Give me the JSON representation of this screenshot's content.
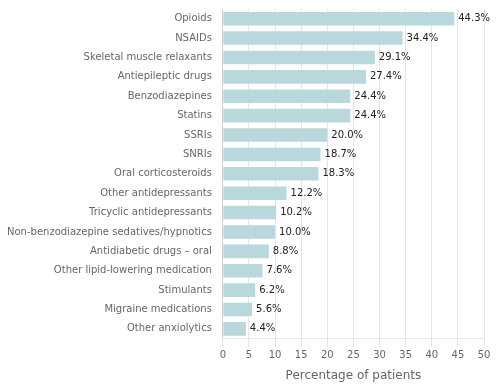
{
  "chart_data": {
    "type": "bar",
    "orientation": "horizontal",
    "categories": [
      "Other anxiolytics",
      "Migraine medications",
      "Stimulants",
      "Other lipid-lowering medication",
      "Antidiabetic drugs – oral",
      "Non-benzodiazepine sedatives/hypnotics",
      "Tricyclic antidepressants",
      "Other antidepressants",
      "Oral corticosteroids",
      "SNRIs",
      "SSRIs",
      "Statins",
      "Benzodiazepines",
      "Antiepileptic drugs",
      "Skeletal muscle relaxants",
      "NSAIDs",
      "Opioids"
    ],
    "values": [
      4.4,
      5.6,
      6.2,
      7.6,
      8.8,
      10.0,
      10.2,
      12.2,
      18.3,
      18.7,
      20.0,
      24.4,
      24.4,
      27.4,
      29.1,
      34.4,
      44.3
    ],
    "value_labels": [
      "4.4%",
      "5.6%",
      "6.2%",
      "7.6%",
      "8.8%",
      "10.0%",
      "10.2%",
      "12.2%",
      "18.3%",
      "18.7%",
      "20.0%",
      "24.4%",
      "24.4%",
      "27.4%",
      "29.1%",
      "34.4%",
      "44.3%"
    ],
    "data_labels": true,
    "color": "#b8d8de",
    "xlabel": "Percentage of patients",
    "xlim": [
      0,
      50
    ],
    "xticks": [
      0,
      5,
      10,
      15,
      20,
      25,
      30,
      35,
      40,
      45,
      50
    ],
    "grid": true
  }
}
